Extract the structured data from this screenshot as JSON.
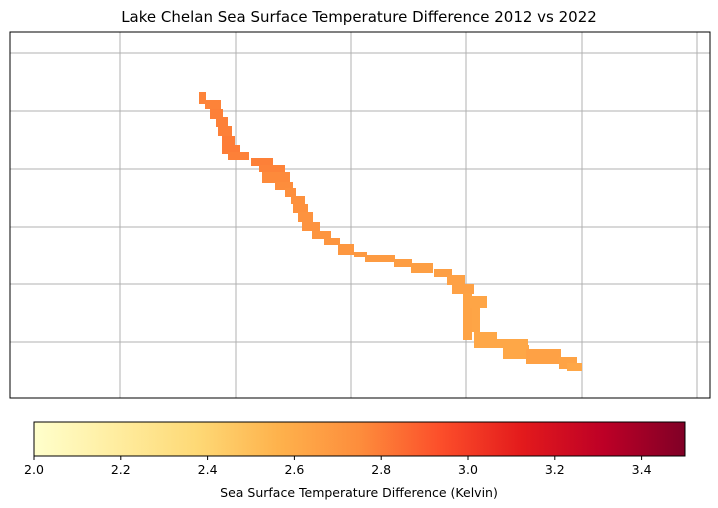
{
  "chart_data": {
    "type": "heatmap",
    "title": "Lake Chelan Sea Surface Temperature Difference 2012 vs 2022",
    "xlabel": "",
    "ylabel": "",
    "grid": true,
    "colormap": "YlOrRd",
    "colorbar": {
      "label": "Sea Surface Temperature Difference (Kelvin)",
      "vmin": 2.0,
      "vmax": 3.5,
      "ticks": [
        "2.0",
        "2.2",
        "2.4",
        "2.6",
        "2.8",
        "3.0",
        "3.2",
        "3.4"
      ],
      "placement": "bottom"
    },
    "cell_values": [
      2.78,
      2.78,
      2.79,
      2.79,
      2.79,
      2.8,
      2.8,
      2.79,
      2.79,
      2.78,
      2.76,
      2.75,
      2.74,
      2.73,
      2.73,
      2.72,
      2.72,
      2.71,
      2.71,
      2.7,
      2.69,
      2.68,
      2.67,
      2.66,
      2.66,
      2.65,
      2.65,
      2.64,
      2.63,
      2.63,
      2.62,
      2.62,
      2.62
    ],
    "colors": {
      "ylorrd": [
        "#ffffcc",
        "#ffeda0",
        "#fed976",
        "#feb24c",
        "#fd8d3c",
        "#fc4e2a",
        "#e31a1c",
        "#bd0026",
        "#800026"
      ],
      "grid": "#b0b0b0",
      "frame": "#000000"
    }
  }
}
